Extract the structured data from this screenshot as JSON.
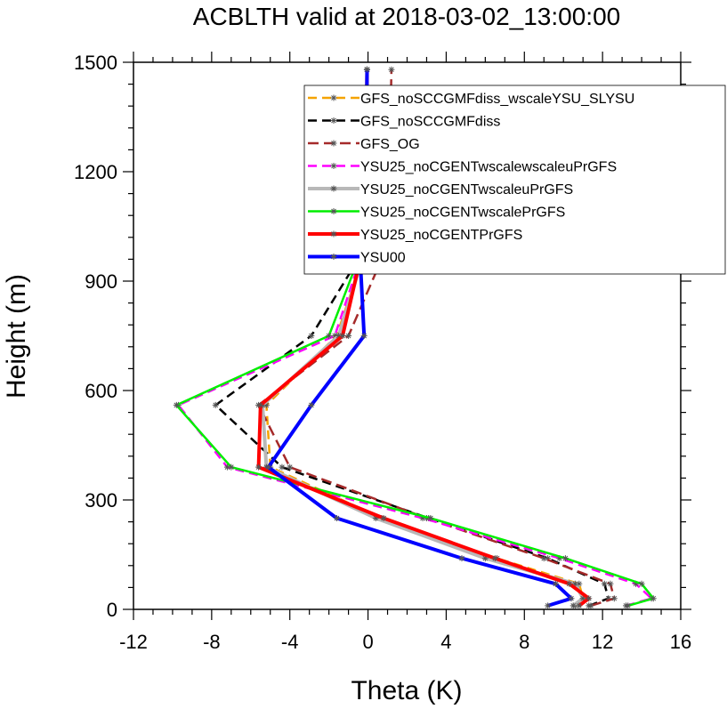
{
  "chart_data": {
    "type": "line",
    "title": "ACBLTH valid at 2018-03-02_13:00:00",
    "xlabel": "Theta (K)",
    "ylabel": "Height (m)",
    "xlim": [
      -12,
      16
    ],
    "ylim": [
      0,
      1500
    ],
    "x_ticks": [
      "-12",
      "-8",
      "-4",
      "0",
      "4",
      "8",
      "12",
      "16"
    ],
    "y_ticks": [
      "0",
      "300",
      "600",
      "900",
      "1200",
      "1500"
    ],
    "legend_position": "top-right",
    "y_levels": [
      10,
      30,
      70,
      140,
      250,
      390,
      560,
      750,
      960,
      1210,
      1480
    ],
    "series": [
      {
        "name": "GFS_noSCCGMFdiss_wscaleYSU_SLYSU",
        "color": "#f5a300",
        "dash": "10,6",
        "width": 2.5,
        "values": [
          10.6,
          11.0,
          10.8,
          6.6,
          0.7,
          -5.0,
          -5.2,
          -1.6,
          -0.3,
          -0.1,
          -0.05
        ]
      },
      {
        "name": "GFS_noSCCGMFdiss",
        "color": "#000000",
        "dash": "10,6",
        "width": 2.5,
        "values": [
          11.3,
          12.3,
          12.1,
          9.2,
          3.1,
          -4.4,
          -7.8,
          -2.9,
          -0.5,
          -0.15,
          -0.05
        ]
      },
      {
        "name": "GFS_OG",
        "color": "#a52a2a",
        "dash": "12,6",
        "width": 2.5,
        "values": [
          11.4,
          12.6,
          12.4,
          9.0,
          3.0,
          -4.0,
          -5.6,
          -1.0,
          0.7,
          1.1,
          1.2
        ]
      },
      {
        "name": "YSU25_noCGENTwscalewscaleuPrGFS",
        "color": "#ff00ff",
        "dash": "10,6",
        "width": 2.5,
        "values": [
          13.2,
          14.5,
          13.7,
          9.8,
          2.8,
          -7.2,
          -9.7,
          -1.7,
          -0.4,
          -0.1,
          -0.05
        ]
      },
      {
        "name": "YSU25_noCGENTwscaleuPrGFS",
        "color": "#b8b8b8",
        "dash": "",
        "width": 4,
        "values": [
          10.5,
          11.0,
          10.6,
          6.0,
          0.4,
          -5.2,
          -5.4,
          -1.5,
          -0.3,
          -0.1,
          -0.05
        ]
      },
      {
        "name": "YSU25_noCGENTwscalePrGFS",
        "color": "#00ee00",
        "dash": "",
        "width": 2.5,
        "values": [
          13.3,
          14.6,
          14.0,
          10.1,
          3.2,
          -7.0,
          -9.8,
          -2.0,
          -0.5,
          -0.1,
          -0.05
        ]
      },
      {
        "name": "YSU25_noCGENTPrGFS",
        "color": "#ff0000",
        "dash": "",
        "width": 4,
        "values": [
          10.8,
          11.3,
          10.3,
          6.5,
          0.8,
          -5.6,
          -5.5,
          -1.3,
          -0.4,
          -0.1,
          -0.05
        ]
      },
      {
        "name": "YSU00",
        "color": "#0000ff",
        "dash": "",
        "width": 4,
        "values": [
          9.2,
          10.4,
          9.6,
          4.8,
          -1.6,
          -5.1,
          -2.9,
          -0.2,
          -0.4,
          -0.1,
          -0.05
        ]
      }
    ]
  }
}
